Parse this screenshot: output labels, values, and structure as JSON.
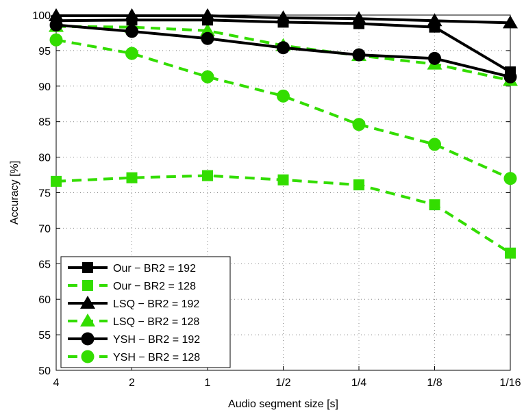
{
  "chart_data": {
    "type": "line",
    "title": "",
    "xlabel": "Audio segment size [s]",
    "ylabel": "Accuracy [%]",
    "categories": [
      "4",
      "2",
      "1",
      "1/2",
      "1/4",
      "1/8",
      "1/16"
    ],
    "ylim": [
      50,
      100
    ],
    "yticks": [
      50,
      55,
      60,
      65,
      70,
      75,
      80,
      85,
      90,
      95,
      100
    ],
    "grid": true,
    "legend_position": "bottom-left",
    "series": [
      {
        "name": "Our − BR2 = 192",
        "marker": "square",
        "color": "#000000",
        "dash": "solid",
        "values": [
          99.2,
          99.3,
          99.3,
          99.0,
          98.8,
          98.3,
          92.0
        ]
      },
      {
        "name": "Our − BR2 = 128",
        "marker": "square",
        "color": "#33dd00",
        "dash": "dashed",
        "values": [
          76.6,
          77.1,
          77.4,
          76.8,
          76.1,
          73.3,
          66.5
        ]
      },
      {
        "name": "LSQ − BR2 = 192",
        "marker": "triangle",
        "color": "#000000",
        "dash": "solid",
        "values": [
          99.9,
          99.9,
          99.9,
          99.6,
          99.5,
          99.2,
          98.9
        ]
      },
      {
        "name": "LSQ − BR2 = 128",
        "marker": "triangle",
        "color": "#33dd00",
        "dash": "dashed",
        "values": [
          98.4,
          98.3,
          97.8,
          95.7,
          94.3,
          93.1,
          90.8
        ]
      },
      {
        "name": "YSH − BR2 = 192",
        "marker": "circle",
        "color": "#000000",
        "dash": "solid",
        "values": [
          98.6,
          97.7,
          96.7,
          95.4,
          94.4,
          93.9,
          91.3
        ]
      },
      {
        "name": "YSH − BR2 = 128",
        "marker": "circle",
        "color": "#33dd00",
        "dash": "dashed",
        "values": [
          96.5,
          94.6,
          91.3,
          88.6,
          84.6,
          81.8,
          77.0
        ]
      }
    ]
  }
}
